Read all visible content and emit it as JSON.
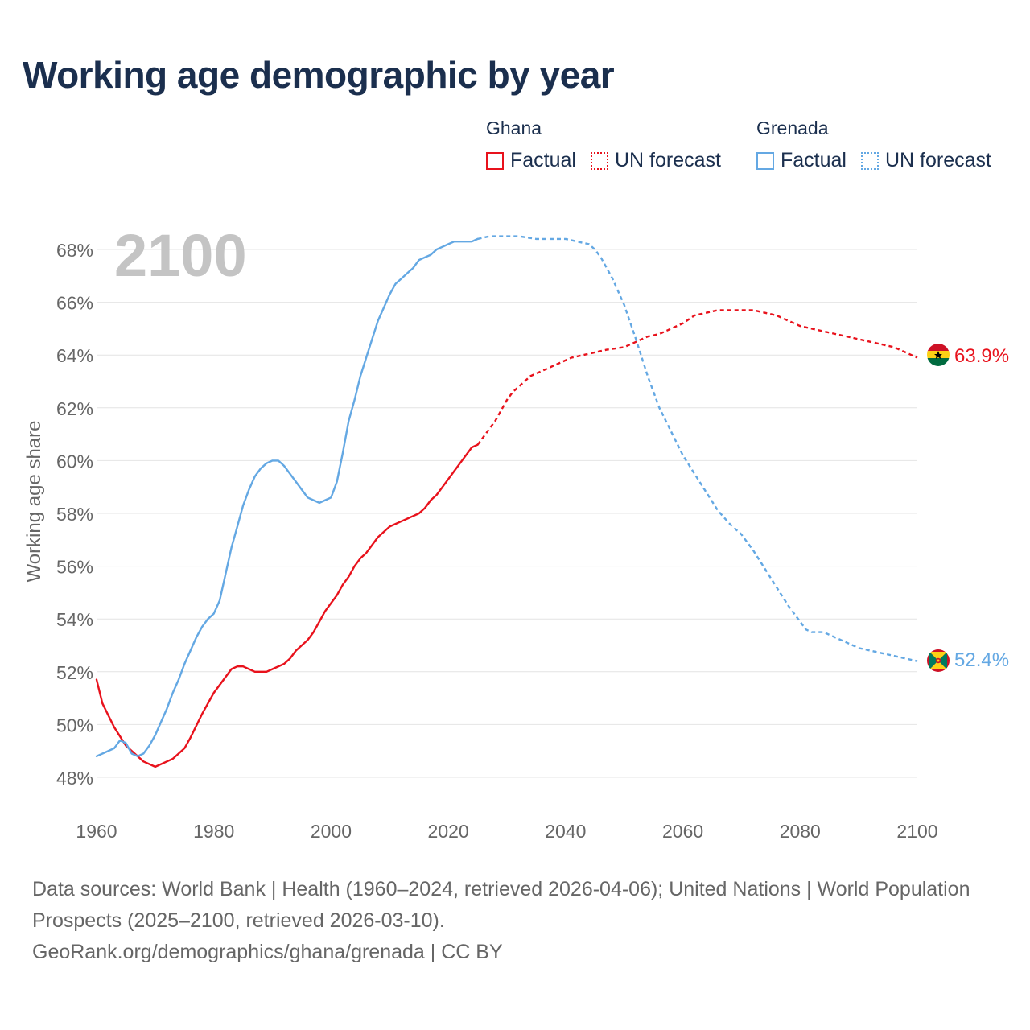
{
  "title": "Working age demographic by year",
  "year_watermark": "2100",
  "legend": [
    {
      "country": "Ghana",
      "factual_label": "Factual",
      "forecast_label": "UN forecast",
      "color": "#e8121c"
    },
    {
      "country": "Grenada",
      "factual_label": "Factual",
      "forecast_label": "UN forecast",
      "color": "#64a8e3"
    }
  ],
  "end_labels": {
    "ghana": "63.9%",
    "grenada": "52.4%"
  },
  "footer": {
    "sources": "Data sources: World Bank | Health (1960–2024, retrieved 2026-04-06); United Nations | World Population Prospects (2025–2100, retrieved 2026-03-10).",
    "credit": "GeoRank.org/demographics/ghana/grenada | CC BY"
  },
  "chart_data": {
    "type": "line",
    "ylabel": "Working age share",
    "xlabel": "",
    "xlim": [
      1960,
      2100
    ],
    "ylim": [
      47,
      69
    ],
    "x_ticks": [
      1960,
      1980,
      2000,
      2020,
      2040,
      2060,
      2080,
      2100
    ],
    "y_ticks": [
      48,
      50,
      52,
      54,
      56,
      58,
      60,
      62,
      64,
      66,
      68
    ],
    "grid": "horizontal",
    "forecast_start": 2025,
    "series": [
      {
        "name": "Ghana",
        "color": "#e8121c",
        "points": [
          [
            1960,
            51.7
          ],
          [
            1961,
            50.8
          ],
          [
            1963,
            49.9
          ],
          [
            1965,
            49.2
          ],
          [
            1967,
            48.8
          ],
          [
            1968,
            48.6
          ],
          [
            1970,
            48.4
          ],
          [
            1972,
            48.6
          ],
          [
            1973,
            48.7
          ],
          [
            1975,
            49.1
          ],
          [
            1976,
            49.5
          ],
          [
            1978,
            50.4
          ],
          [
            1980,
            51.2
          ],
          [
            1982,
            51.8
          ],
          [
            1983,
            52.1
          ],
          [
            1984,
            52.2
          ],
          [
            1985,
            52.2
          ],
          [
            1986,
            52.1
          ],
          [
            1987,
            52.0
          ],
          [
            1989,
            52.0
          ],
          [
            1990,
            52.1
          ],
          [
            1992,
            52.3
          ],
          [
            1993,
            52.5
          ],
          [
            1994,
            52.8
          ],
          [
            1996,
            53.2
          ],
          [
            1997,
            53.5
          ],
          [
            1998,
            53.9
          ],
          [
            1999,
            54.3
          ],
          [
            2000,
            54.6
          ],
          [
            2001,
            54.9
          ],
          [
            2002,
            55.3
          ],
          [
            2003,
            55.6
          ],
          [
            2004,
            56.0
          ],
          [
            2005,
            56.3
          ],
          [
            2006,
            56.5
          ],
          [
            2007,
            56.8
          ],
          [
            2008,
            57.1
          ],
          [
            2010,
            57.5
          ],
          [
            2012,
            57.7
          ],
          [
            2014,
            57.9
          ],
          [
            2015,
            58.0
          ],
          [
            2016,
            58.2
          ],
          [
            2017,
            58.5
          ],
          [
            2018,
            58.7
          ],
          [
            2019,
            59.0
          ],
          [
            2020,
            59.3
          ],
          [
            2021,
            59.6
          ],
          [
            2022,
            59.9
          ],
          [
            2023,
            60.2
          ],
          [
            2024,
            60.5
          ],
          [
            2025,
            60.6
          ],
          [
            2026,
            60.9
          ],
          [
            2027,
            61.2
          ],
          [
            2028,
            61.5
          ],
          [
            2029,
            61.9
          ],
          [
            2030,
            62.3
          ],
          [
            2031,
            62.6
          ],
          [
            2032,
            62.8
          ],
          [
            2033,
            63.0
          ],
          [
            2034,
            63.2
          ],
          [
            2035,
            63.3
          ],
          [
            2037,
            63.5
          ],
          [
            2039,
            63.7
          ],
          [
            2041,
            63.9
          ],
          [
            2043,
            64.0
          ],
          [
            2045,
            64.1
          ],
          [
            2047,
            64.2
          ],
          [
            2050,
            64.3
          ],
          [
            2052,
            64.5
          ],
          [
            2054,
            64.7
          ],
          [
            2056,
            64.8
          ],
          [
            2058,
            65.0
          ],
          [
            2060,
            65.2
          ],
          [
            2062,
            65.5
          ],
          [
            2064,
            65.6
          ],
          [
            2066,
            65.7
          ],
          [
            2068,
            65.7
          ],
          [
            2070,
            65.7
          ],
          [
            2072,
            65.7
          ],
          [
            2074,
            65.6
          ],
          [
            2076,
            65.5
          ],
          [
            2078,
            65.3
          ],
          [
            2080,
            65.1
          ],
          [
            2082,
            65.0
          ],
          [
            2084,
            64.9
          ],
          [
            2086,
            64.8
          ],
          [
            2088,
            64.7
          ],
          [
            2090,
            64.6
          ],
          [
            2092,
            64.5
          ],
          [
            2094,
            64.4
          ],
          [
            2096,
            64.3
          ],
          [
            2098,
            64.1
          ],
          [
            2100,
            63.9
          ]
        ]
      },
      {
        "name": "Grenada",
        "color": "#64a8e3",
        "points": [
          [
            1960,
            48.8
          ],
          [
            1963,
            49.1
          ],
          [
            1964,
            49.4
          ],
          [
            1965,
            49.3
          ],
          [
            1966,
            48.9
          ],
          [
            1967,
            48.8
          ],
          [
            1968,
            48.9
          ],
          [
            1969,
            49.2
          ],
          [
            1970,
            49.6
          ],
          [
            1971,
            50.1
          ],
          [
            1972,
            50.6
          ],
          [
            1973,
            51.2
          ],
          [
            1974,
            51.7
          ],
          [
            1975,
            52.3
          ],
          [
            1976,
            52.8
          ],
          [
            1977,
            53.3
          ],
          [
            1978,
            53.7
          ],
          [
            1979,
            54.0
          ],
          [
            1980,
            54.2
          ],
          [
            1981,
            54.7
          ],
          [
            1982,
            55.7
          ],
          [
            1983,
            56.7
          ],
          [
            1984,
            57.5
          ],
          [
            1985,
            58.3
          ],
          [
            1986,
            58.9
          ],
          [
            1987,
            59.4
          ],
          [
            1988,
            59.7
          ],
          [
            1989,
            59.9
          ],
          [
            1990,
            60.0
          ],
          [
            1991,
            60.0
          ],
          [
            1992,
            59.8
          ],
          [
            1993,
            59.5
          ],
          [
            1994,
            59.2
          ],
          [
            1995,
            58.9
          ],
          [
            1996,
            58.6
          ],
          [
            1997,
            58.5
          ],
          [
            1998,
            58.4
          ],
          [
            1999,
            58.5
          ],
          [
            2000,
            58.6
          ],
          [
            2001,
            59.2
          ],
          [
            2002,
            60.3
          ],
          [
            2003,
            61.5
          ],
          [
            2004,
            62.3
          ],
          [
            2005,
            63.2
          ],
          [
            2006,
            63.9
          ],
          [
            2007,
            64.6
          ],
          [
            2008,
            65.3
          ],
          [
            2009,
            65.8
          ],
          [
            2010,
            66.3
          ],
          [
            2011,
            66.7
          ],
          [
            2012,
            66.9
          ],
          [
            2013,
            67.1
          ],
          [
            2014,
            67.3
          ],
          [
            2015,
            67.6
          ],
          [
            2016,
            67.7
          ],
          [
            2017,
            67.8
          ],
          [
            2018,
            68.0
          ],
          [
            2019,
            68.1
          ],
          [
            2020,
            68.2
          ],
          [
            2021,
            68.3
          ],
          [
            2022,
            68.3
          ],
          [
            2023,
            68.3
          ],
          [
            2024,
            68.3
          ],
          [
            2025,
            68.4
          ],
          [
            2027,
            68.5
          ],
          [
            2030,
            68.5
          ],
          [
            2032,
            68.5
          ],
          [
            2035,
            68.4
          ],
          [
            2040,
            68.4
          ],
          [
            2042,
            68.3
          ],
          [
            2044,
            68.2
          ],
          [
            2045,
            68.0
          ],
          [
            2046,
            67.7
          ],
          [
            2047,
            67.3
          ],
          [
            2048,
            66.9
          ],
          [
            2050,
            65.9
          ],
          [
            2052,
            64.6
          ],
          [
            2054,
            63.2
          ],
          [
            2056,
            62.0
          ],
          [
            2058,
            61.1
          ],
          [
            2060,
            60.2
          ],
          [
            2062,
            59.5
          ],
          [
            2064,
            58.8
          ],
          [
            2066,
            58.1
          ],
          [
            2068,
            57.6
          ],
          [
            2070,
            57.2
          ],
          [
            2072,
            56.6
          ],
          [
            2074,
            55.9
          ],
          [
            2076,
            55.2
          ],
          [
            2078,
            54.5
          ],
          [
            2080,
            53.9
          ],
          [
            2081,
            53.6
          ],
          [
            2082,
            53.5
          ],
          [
            2084,
            53.5
          ],
          [
            2086,
            53.3
          ],
          [
            2088,
            53.1
          ],
          [
            2090,
            52.9
          ],
          [
            2092,
            52.8
          ],
          [
            2094,
            52.7
          ],
          [
            2096,
            52.6
          ],
          [
            2098,
            52.5
          ],
          [
            2100,
            52.4
          ]
        ]
      }
    ]
  }
}
